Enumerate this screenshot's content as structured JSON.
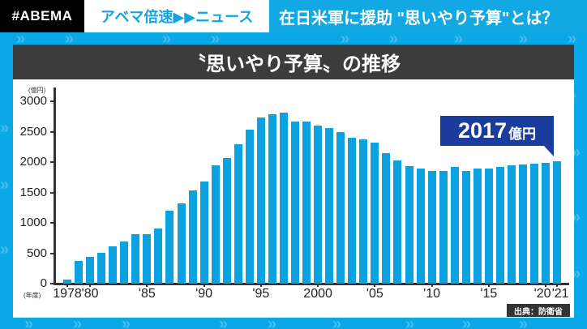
{
  "banner": {
    "logo": "#ABEMA",
    "show": "アベマ倍速▶▶ニュース",
    "headline": "在日米軍に援助 \"思いやり予算\"とは？"
  },
  "panel": {
    "title": "〝思いやり予算〟の推移"
  },
  "callout": {
    "value": "2017",
    "unit": "億円"
  },
  "source": "出典：防衛省",
  "chart_data": {
    "type": "bar",
    "title": "〝思いやり予算〟の推移",
    "xlabel": "(年度)",
    "ylabel": "(億円)",
    "ylim": [
      0,
      3000
    ],
    "yticks": [
      0,
      500,
      1000,
      1500,
      2000,
      2500,
      3000
    ],
    "xtick_labels": [
      "1978",
      "'80",
      "'85",
      "'90",
      "'95",
      "2000",
      "'05",
      "'10",
      "'15",
      "'20",
      "'21"
    ],
    "grid": false,
    "legend": null,
    "annotations": [
      "2017億円 (2021)",
      "出典：防衛省"
    ],
    "categories": [
      "1978",
      "1979",
      "1980",
      "1981",
      "1982",
      "1983",
      "1984",
      "1985",
      "1986",
      "1987",
      "1988",
      "1989",
      "1990",
      "1991",
      "1992",
      "1993",
      "1994",
      "1995",
      "1996",
      "1997",
      "1998",
      "1999",
      "2000",
      "2001",
      "2002",
      "2003",
      "2004",
      "2005",
      "2006",
      "2007",
      "2008",
      "2009",
      "2010",
      "2011",
      "2012",
      "2013",
      "2014",
      "2015",
      "2016",
      "2017",
      "2018",
      "2019",
      "2020",
      "2021"
    ],
    "values": [
      62,
      374,
      437,
      513,
      608,
      693,
      807,
      817,
      903,
      1203,
      1323,
      1540,
      1680,
      1950,
      2070,
      2290,
      2540,
      2740,
      2790,
      2810,
      2670,
      2670,
      2600,
      2560,
      2500,
      2400,
      2370,
      2320,
      2150,
      2030,
      1930,
      1900,
      1860,
      1860,
      1920,
      1860,
      1890,
      1900,
      1920,
      1950,
      1960,
      1980,
      1990,
      2017
    ]
  }
}
